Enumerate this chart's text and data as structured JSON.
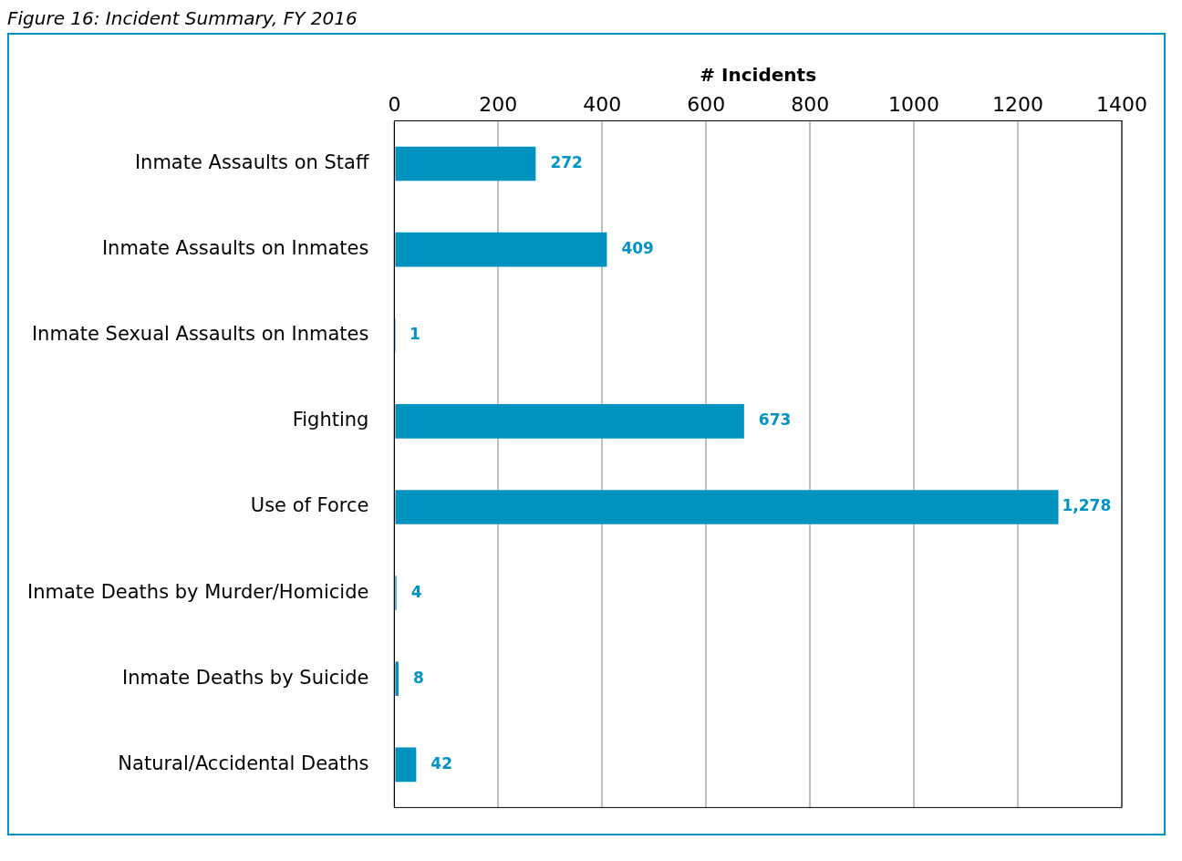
{
  "chart_data": {
    "type": "bar",
    "orientation": "horizontal",
    "title": "Figure 16: Incident Summary, FY 2016",
    "xlabel": "# Incidents",
    "categories": [
      "Inmate Assaults on Staff",
      "Inmate Assaults on Inmates",
      "Inmate Sexual Assaults on Inmates",
      "Fighting",
      "Use of Force",
      "Inmate Deaths by Murder/Homicide",
      "Inmate Deaths by Suicide",
      "Natural/Accidental Deaths"
    ],
    "values": [
      272,
      409,
      1,
      673,
      1278,
      4,
      8,
      42
    ],
    "value_labels": [
      "272",
      "409",
      "1",
      "673",
      "1,278",
      "4",
      "8",
      "42"
    ],
    "color": "#0093c0",
    "xlim": [
      0,
      1400
    ],
    "xticks": [
      0,
      200,
      400,
      600,
      800,
      1000,
      1200,
      1400
    ],
    "grid": "x",
    "legend": false
  }
}
